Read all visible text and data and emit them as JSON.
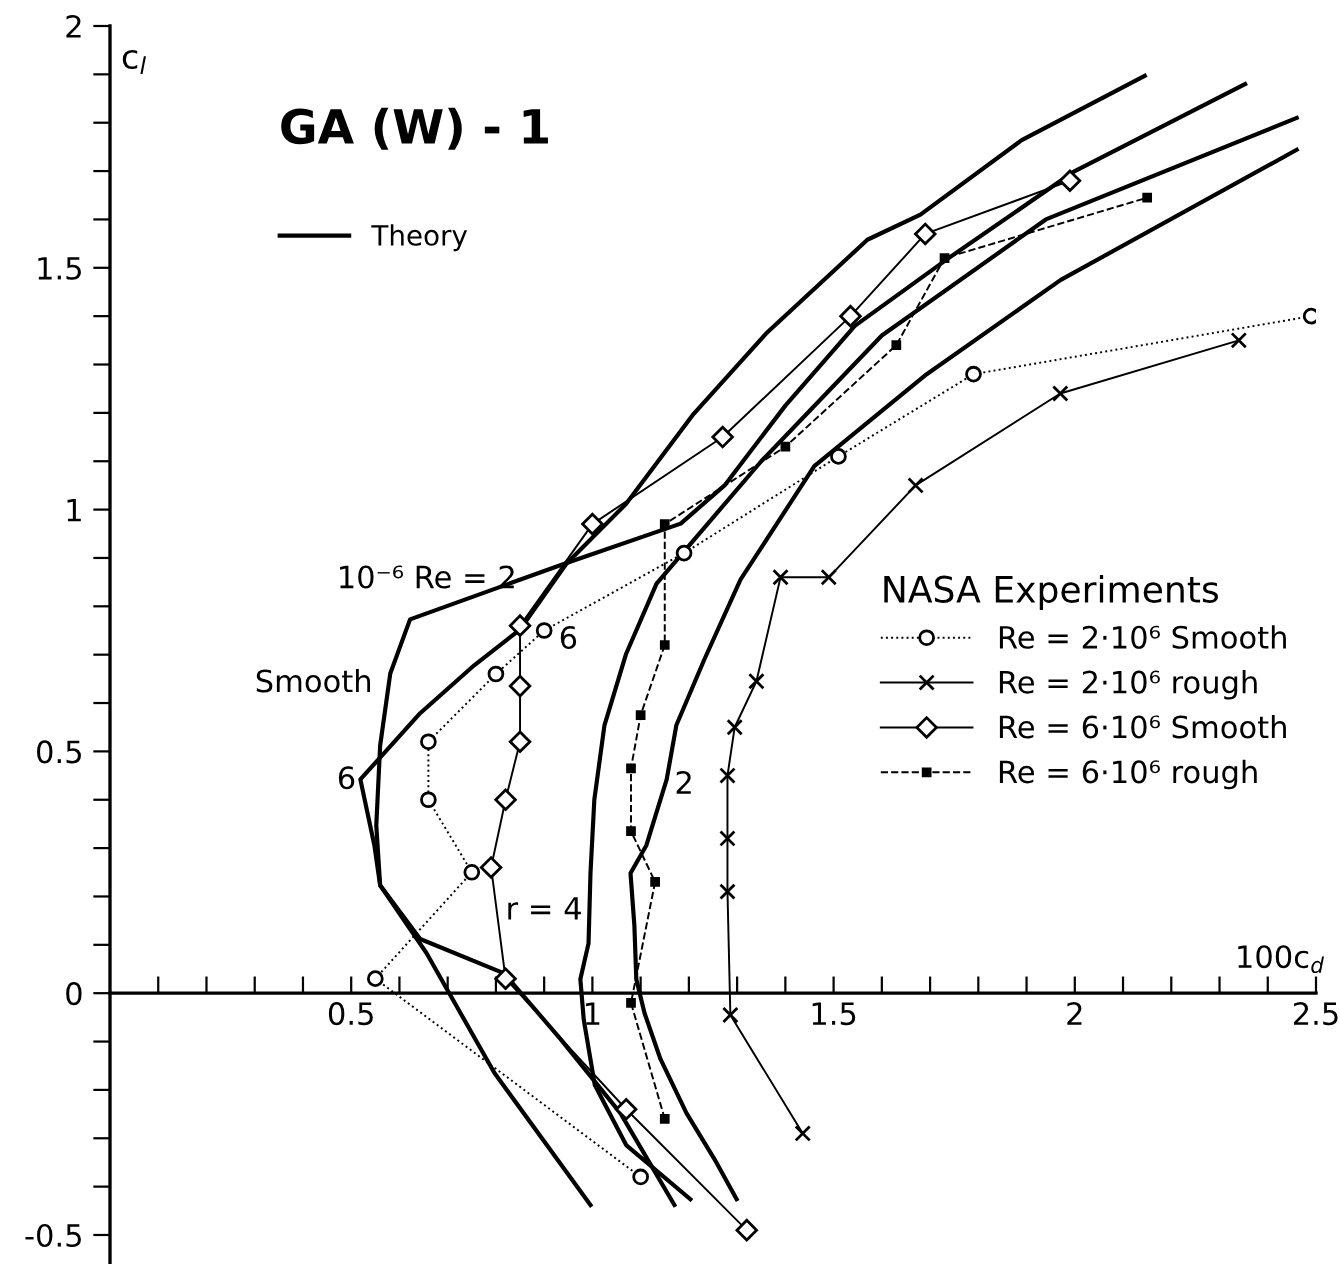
{
  "chart_data": {
    "type": "line",
    "title": "GA (W) - 1",
    "xlabel": "100c$_{d}$",
    "ylabel": "c$_{l}$",
    "legend_title": "NASA Experiments",
    "legend": "right",
    "xlim": [
      0,
      2.5
    ],
    "ylim": [
      -0.56,
      2
    ],
    "xticks": [
      {
        "value": 0.1,
        "label": null
      },
      {
        "value": 0.2,
        "label": null
      },
      {
        "value": 0.3,
        "label": null
      },
      {
        "value": 0.4,
        "label": null
      },
      {
        "value": 0.5,
        "label": "0.5"
      },
      {
        "value": 0.6,
        "label": null
      },
      {
        "value": 0.7,
        "label": null
      },
      {
        "value": 0.8,
        "label": null
      },
      {
        "value": 0.9,
        "label": null
      },
      1,
      {
        "value": 1.1,
        "label": null
      },
      {
        "value": 1.2,
        "label": null
      },
      {
        "value": 1.3,
        "label": null
      },
      {
        "value": 1.4,
        "label": null
      },
      1.5,
      {
        "value": 1.6,
        "label": null
      },
      {
        "value": 1.7,
        "label": null
      },
      {
        "value": 1.8,
        "label": null
      },
      {
        "value": 1.9,
        "label": null
      },
      2,
      {
        "value": 2.1,
        "label": null
      },
      {
        "value": 2.2,
        "label": null
      },
      {
        "value": 2.3,
        "label": null
      },
      {
        "value": 2.4,
        "label": null
      },
      2.5
    ],
    "yticks": [
      -0.5,
      {
        "value": -0.4,
        "label": null
      },
      {
        "value": -0.3,
        "label": null
      },
      {
        "value": -0.2,
        "label": null
      },
      {
        "value": -0.1,
        "label": null
      },
      0,
      {
        "value": 0.1,
        "label": null
      },
      {
        "value": 0.2,
        "label": null
      },
      {
        "value": 0.3,
        "label": null
      },
      {
        "value": 0.4,
        "label": null
      },
      0.5,
      {
        "value": 0.6,
        "label": null
      },
      {
        "value": 0.7,
        "label": null
      },
      {
        "value": 0.8,
        "label": null
      },
      {
        "value": 0.9,
        "label": null
      },
      1,
      {
        "value": 1.1,
        "label": null
      },
      {
        "value": 1.2,
        "label": null
      },
      {
        "value": 1.3,
        "label": null
      },
      {
        "value": 1.4,
        "label": null
      },
      1.5,
      {
        "value": 1.6,
        "label": null
      },
      {
        "value": 1.7,
        "label": null
      },
      {
        "value": 1.8,
        "label": null
      },
      {
        "value": 1.9,
        "label": null
      },
      2
    ],
    "grid": false,
    "series": [
      {
        "name": "Theory",
        "color": "#000000",
        "marker": "none",
        "line_style": "solid",
        "x": [
          0.996,
          0.797,
          0.656,
          0.56,
          0.548,
          0.519,
          0.643,
          0.755,
          0.85,
          0.946,
          1.07,
          1.21,
          1.36,
          1.57,
          1.68,
          1.89,
          2.145
        ],
        "values": [
          -0.438,
          -0.165,
          0.083,
          0.223,
          0.306,
          0.442,
          0.579,
          0.678,
          0.752,
          0.888,
          1.012,
          1.198,
          1.364,
          1.558,
          1.61,
          1.764,
          1.897
        ]
      },
      {
        "color": "#000000",
        "marker": "none",
        "line_style": "solid",
        "x": [
          1.17,
          1.058,
          0.934,
          0.817,
          0.643,
          0.56,
          0.552,
          0.56,
          0.581,
          0.622,
          0.942,
          1.183,
          1.274,
          1.4,
          1.544,
          1.734,
          2.0,
          2.353
        ],
        "values": [
          -0.438,
          -0.248,
          -0.095,
          0.041,
          0.112,
          0.223,
          0.347,
          0.512,
          0.661,
          0.773,
          0.888,
          0.971,
          1.05,
          1.215,
          1.38,
          1.517,
          1.7,
          1.88
        ]
      },
      {
        "color": "#000000",
        "marker": "none",
        "line_style": "solid",
        "x": [
          1.203,
          1.07,
          1.005,
          0.982,
          0.975,
          0.992,
          0.996,
          1.004,
          1.025,
          1.07,
          1.133,
          1.35,
          1.6,
          1.94,
          2.46
        ],
        "values": [
          -0.426,
          -0.314,
          -0.19,
          -0.054,
          0.029,
          0.103,
          0.248,
          0.4,
          0.554,
          0.702,
          0.847,
          1.1,
          1.36,
          1.6,
          1.81
        ]
      },
      {
        "color": "#000000",
        "marker": "none",
        "line_style": "solid",
        "x": [
          1.299,
          1.253,
          1.195,
          1.141,
          1.108,
          1.091,
          1.087,
          1.079,
          1.112,
          1.154,
          1.174,
          1.232,
          1.307,
          1.46,
          1.693,
          1.971,
          2.46
        ],
        "values": [
          -0.426,
          -0.343,
          -0.248,
          -0.136,
          -0.041,
          0.029,
          0.14,
          0.248,
          0.306,
          0.442,
          0.554,
          0.69,
          0.855,
          1.09,
          1.28,
          1.475,
          1.744
        ]
      },
      {
        "name": "Re = 2·10⁶ Smooth",
        "color": "#000000",
        "marker": "circle",
        "line_style": "dotted",
        "x": [
          1.1,
          0.55,
          0.75,
          0.66,
          0.66,
          0.8,
          0.9,
          1.19,
          1.51,
          1.79,
          2.49
        ],
        "values": [
          -0.38,
          0.03,
          0.25,
          0.4,
          0.52,
          0.66,
          0.75,
          0.91,
          1.11,
          1.28,
          1.4
        ]
      },
      {
        "name": "Re = 2·10⁶ rough",
        "color": "#000000",
        "marker": "cross",
        "line_style": "solid",
        "x": [
          1.436,
          1.286,
          1.28,
          1.28,
          1.28,
          1.295,
          1.34,
          1.39,
          1.49,
          1.67,
          1.97,
          2.34
        ],
        "values": [
          -0.29,
          -0.045,
          0.21,
          0.32,
          0.45,
          0.55,
          0.645,
          0.86,
          0.86,
          1.05,
          1.24,
          1.35
        ]
      },
      {
        "name": "Re = 6·10⁶ Smooth",
        "color": "#000000",
        "marker": "diamond",
        "line_style": "solid",
        "x": [
          1.32,
          1.07,
          0.82,
          0.79,
          0.82,
          0.85,
          0.85,
          0.85,
          1.0,
          1.27,
          1.535,
          1.69,
          1.99
        ],
        "values": [
          -0.49,
          -0.24,
          0.03,
          0.26,
          0.4,
          0.52,
          0.635,
          0.76,
          0.97,
          1.15,
          1.4,
          1.57,
          1.68
        ]
      },
      {
        "name": "Re = 6·10⁶ rough",
        "color": "#000000",
        "marker": "square",
        "line_style": "dashed",
        "x": [
          1.15,
          1.08,
          1.13,
          1.08,
          1.08,
          1.1,
          1.15,
          1.15,
          1.4,
          1.63,
          1.73,
          2.15
        ],
        "values": [
          -0.26,
          -0.02,
          0.23,
          0.335,
          0.465,
          0.575,
          0.72,
          0.97,
          1.13,
          1.34,
          1.52,
          1.645
        ]
      }
    ],
    "annotations": [
      "10⁻⁶ Re = 2",
      "Smooth",
      "6",
      {
        "text": "6",
        "x": 0.93,
        "y": 0.73
      },
      {
        "text": "2",
        "x": 1.17,
        "y": 0.43
      },
      {
        "text": "r = 4",
        "x": 0.82,
        "y": 0.17
      }
    ]
  }
}
